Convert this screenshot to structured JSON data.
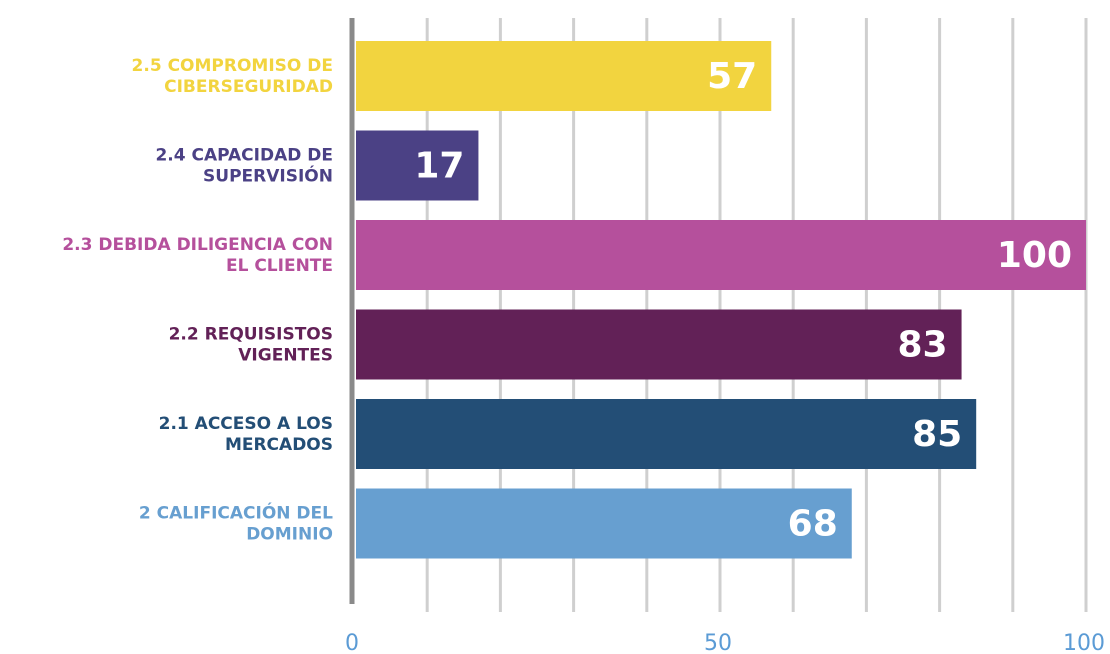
{
  "chart_data": {
    "type": "hbar",
    "categories": [
      [
        "2.5 COMPROMISO DE",
        "CIBERSEGURIDAD"
      ],
      [
        "2.4 CAPACIDAD DE",
        "SUPERVISIÓN"
      ],
      [
        "2.3 DEBIDA DILIGENCIA CON",
        "EL CLIENTE"
      ],
      [
        "2.2 REQUISISTOS",
        "VIGENTES"
      ],
      [
        "2.1 ACCESO A LOS",
        "MERCADOS"
      ],
      [
        "2 CALIFICACIÓN DEL",
        "DOMINIO"
      ]
    ],
    "values": [
      57,
      17,
      100,
      83,
      85,
      68
    ],
    "colors": [
      "#f2d43f",
      "#4b4185",
      "#b5509c",
      "#622157",
      "#234e76",
      "#679fd0"
    ],
    "xlim": [
      0,
      100
    ],
    "xticks": [
      0,
      50,
      100
    ],
    "grid_lines": [
      10,
      20,
      30,
      40,
      50,
      60,
      70,
      80,
      90,
      100
    ],
    "grid": true
  }
}
